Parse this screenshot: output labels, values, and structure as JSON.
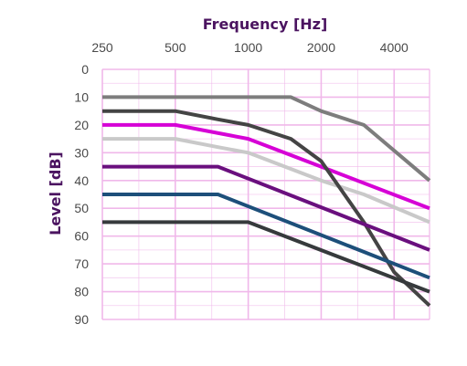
{
  "chart_data": {
    "type": "line",
    "title": "",
    "xlabel": "Frequency [Hz]",
    "ylabel": "Level [dB]",
    "x_scale": "log2",
    "x_axis_position": "top",
    "y_axis_inverted": true,
    "xlim": [
      250,
      5600
    ],
    "ylim": [
      0,
      90
    ],
    "x_ticks": [
      250,
      500,
      1000,
      2000,
      4000
    ],
    "x_tick_labels": [
      "250",
      "500",
      "1000",
      "2000",
      "4000"
    ],
    "y_ticks": [
      0,
      10,
      20,
      30,
      40,
      50,
      60,
      70,
      80,
      90
    ],
    "y_tick_labels": [
      "0",
      "10",
      "20",
      "30",
      "40",
      "50",
      "60",
      "70",
      "80",
      "90"
    ],
    "grid": true,
    "grid_color": "#f0b8ea",
    "series": [
      {
        "color": "#7d7d7d",
        "points": [
          [
            250,
            10
          ],
          [
            500,
            10
          ],
          [
            1000,
            10
          ],
          [
            1500,
            10
          ],
          [
            2000,
            15
          ],
          [
            3000,
            20
          ],
          [
            5600,
            40
          ]
        ]
      },
      {
        "color": "#c9c9c9",
        "points": [
          [
            250,
            25
          ],
          [
            500,
            25
          ],
          [
            750,
            28
          ],
          [
            1000,
            30
          ],
          [
            2000,
            40
          ],
          [
            3000,
            45
          ],
          [
            5600,
            55
          ]
        ]
      },
      {
        "color": "#d600d6",
        "points": [
          [
            250,
            20
          ],
          [
            500,
            20
          ],
          [
            1000,
            25
          ],
          [
            2000,
            35
          ],
          [
            5600,
            50
          ]
        ]
      },
      {
        "color": "#444444",
        "points": [
          [
            250,
            15
          ],
          [
            500,
            15
          ],
          [
            750,
            18
          ],
          [
            1000,
            20
          ],
          [
            1500,
            25
          ],
          [
            2000,
            33
          ],
          [
            3000,
            55
          ],
          [
            4000,
            73
          ],
          [
            5600,
            85
          ]
        ]
      },
      {
        "color": "#6a0f7e",
        "points": [
          [
            250,
            35
          ],
          [
            500,
            35
          ],
          [
            750,
            35
          ],
          [
            5600,
            65
          ]
        ]
      },
      {
        "color": "#1d4f7a",
        "points": [
          [
            250,
            45
          ],
          [
            500,
            45
          ],
          [
            750,
            45
          ],
          [
            5600,
            75
          ]
        ]
      },
      {
        "color": "#363a3c",
        "points": [
          [
            250,
            55
          ],
          [
            500,
            55
          ],
          [
            1000,
            55
          ],
          [
            5600,
            80
          ]
        ]
      }
    ]
  }
}
